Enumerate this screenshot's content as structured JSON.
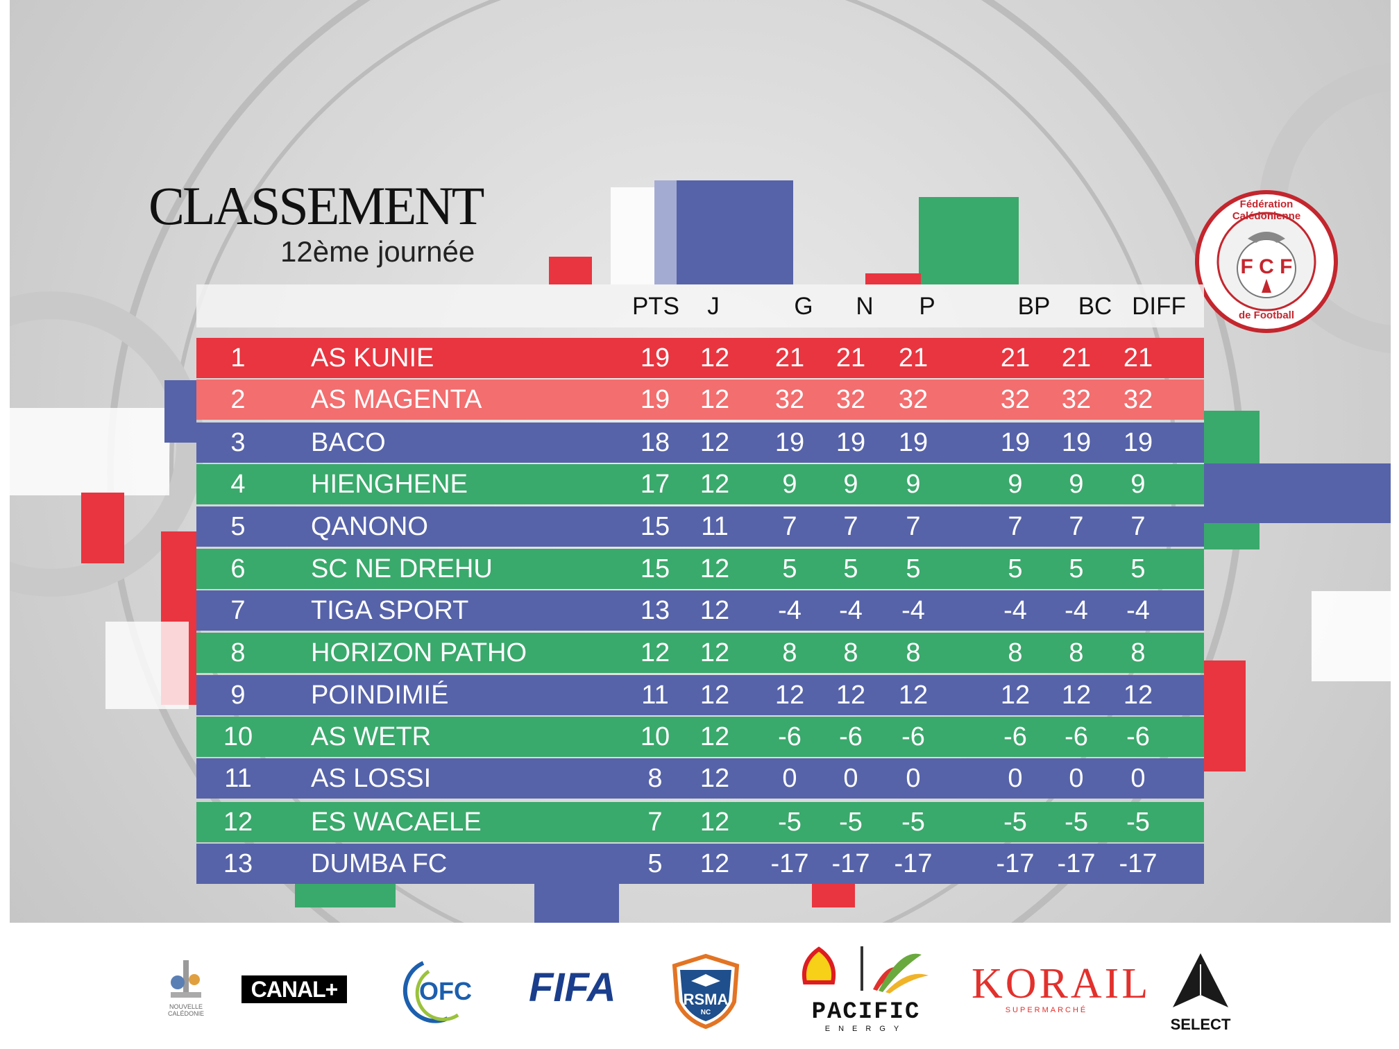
{
  "header": {
    "title": "CLASSEMENT",
    "subtitle": "12ème journée"
  },
  "columns": [
    "PTS",
    "J",
    "G",
    "N",
    "P",
    "BP",
    "BC",
    "DIFF"
  ],
  "colors": {
    "red": "#e8353f",
    "light_red": "#f26e6f",
    "blue": "#5663a9",
    "green": "#3aa96c",
    "bg_grey": "#d4d4d4"
  },
  "rows": [
    {
      "rank": "1",
      "team": "AS KUNIE",
      "pts": "19",
      "j": "12",
      "g": "21",
      "n": "21",
      "p": "21",
      "bp": "21",
      "bc": "21",
      "diff": "21",
      "color": "#e8353f"
    },
    {
      "rank": "2",
      "team": "AS MAGENTA",
      "pts": "19",
      "j": "12",
      "g": "32",
      "n": "32",
      "p": "32",
      "bp": "32",
      "bc": "32",
      "diff": "32",
      "color": "#f26e6f"
    },
    {
      "rank": "3",
      "team": "BACO",
      "pts": "18",
      "j": "12",
      "g": "19",
      "n": "19",
      "p": "19",
      "bp": "19",
      "bc": "19",
      "diff": "19",
      "color": "#5663a9"
    },
    {
      "rank": "4",
      "team": "HIENGHENE",
      "pts": "17",
      "j": "12",
      "g": "9",
      "n": "9",
      "p": "9",
      "bp": "9",
      "bc": "9",
      "diff": "9",
      "color": "#3aa96c"
    },
    {
      "rank": "5",
      "team": "QANONO",
      "pts": "15",
      "j": "11",
      "g": "7",
      "n": "7",
      "p": "7",
      "bp": "7",
      "bc": "7",
      "diff": "7",
      "color": "#5663a9"
    },
    {
      "rank": "6",
      "team": "SC NE DREHU",
      "pts": "15",
      "j": "12",
      "g": "5",
      "n": "5",
      "p": "5",
      "bp": "5",
      "bc": "5",
      "diff": "5",
      "color": "#3aa96c"
    },
    {
      "rank": "7",
      "team": "TIGA SPORT",
      "pts": "13",
      "j": "12",
      "g": "-4",
      "n": "-4",
      "p": "-4",
      "bp": "-4",
      "bc": "-4",
      "diff": "-4",
      "color": "#5663a9"
    },
    {
      "rank": "8",
      "team": "HORIZON PATHO",
      "pts": "12",
      "j": "12",
      "g": "8",
      "n": "8",
      "p": "8",
      "bp": "8",
      "bc": "8",
      "diff": "8",
      "color": "#3aa96c"
    },
    {
      "rank": "9",
      "team": "POINDIMIÉ",
      "pts": "11",
      "j": "12",
      "g": "12",
      "n": "12",
      "p": "12",
      "bp": "12",
      "bc": "12",
      "diff": "12",
      "color": "#5663a9"
    },
    {
      "rank": "10",
      "team": "AS WETR",
      "pts": "10",
      "j": "12",
      "g": "-6",
      "n": "-6",
      "p": "-6",
      "bp": "-6",
      "bc": "-6",
      "diff": "-6",
      "color": "#3aa96c"
    },
    {
      "rank": "11",
      "team": "AS LOSSI",
      "pts": "8",
      "j": "12",
      "g": "0",
      "n": "0",
      "p": "0",
      "bp": "0",
      "bc": "0",
      "diff": "0",
      "color": "#5663a9"
    },
    {
      "rank": "12",
      "team": "ES WACAELE",
      "pts": "7",
      "j": "12",
      "g": "-5",
      "n": "-5",
      "p": "-5",
      "bp": "-5",
      "bc": "-5",
      "diff": "-5",
      "color": "#3aa96c"
    },
    {
      "rank": "13",
      "team": "DUMBA FC",
      "pts": "5",
      "j": "12",
      "g": "-17",
      "n": "-17",
      "p": "-17",
      "bp": "-17",
      "bc": "-17",
      "diff": "-17",
      "color": "#5663a9"
    }
  ],
  "logo": {
    "ring_text_top": "Fédération Calédonienne",
    "ring_text_bottom": "de Football",
    "monogram": "F C F"
  },
  "sponsors": {
    "nouvelle_caledonie": "NOUVELLE CALÉDONIE",
    "canal": "CANAL+",
    "ofc": "OFC",
    "fifa": "FIFA",
    "rsma": "RSMA",
    "rsma_sub": "NC",
    "pacific": "PACIFIC",
    "pacific_sub": "ENERGY",
    "korail": "KORAIL",
    "korail_sub": "SUPERMARCHÉ",
    "select": "SELECT"
  }
}
